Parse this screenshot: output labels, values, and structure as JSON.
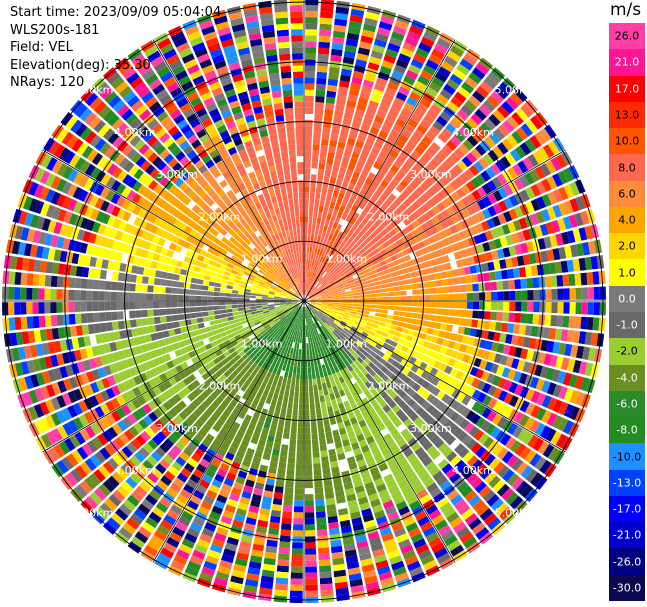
{
  "header": {
    "start_time": "Start time: 2023/09/09 05:04:04",
    "site": "WLS200s-181",
    "field": "Field: VEL",
    "elevation": "Elevation(deg): 35.30",
    "nrays": "NRays: 120"
  },
  "colorbar": {
    "unit": "m/s",
    "labels": [
      "26.0",
      "21.0",
      "17.0",
      "13.0",
      "10.0",
      "8.0",
      "6.0",
      "4.0",
      "2.0",
      "1.0",
      "0.0",
      "-1.0",
      "-2.0",
      "-4.0",
      "-6.0",
      "-8.0",
      "-10.0",
      "-13.0",
      "-17.0",
      "-21.0",
      "-26.0",
      "-30.0"
    ],
    "colors": [
      "#ff3fa5",
      "#ff1493",
      "#ff0000",
      "#ff2a00",
      "#ff5500",
      "#ff6a4f",
      "#ff8c3a",
      "#ffa500",
      "#ffd700",
      "#ffff00",
      "#7a7a7a",
      "#696969",
      "#9acd32",
      "#6b8e23",
      "#2a8b2a",
      "#228b22",
      "#1e90ff",
      "#0040ff",
      "#0000ff",
      "#0000cd",
      "#000080",
      "#0a0a50"
    ]
  },
  "chart_data": {
    "type": "ppi",
    "field": "VEL",
    "n_rays": 120,
    "elevation_deg": 35.3,
    "range_rings_km": [
      1.0,
      2.0,
      3.0,
      4.0,
      5.0
    ],
    "ring_labels": [
      "1.00km",
      "2.00km",
      "3.00km",
      "4.00km",
      "5.00km"
    ],
    "max_range_km": 5.05,
    "value_range": [
      -30.0,
      26.0
    ],
    "pattern_description_values": {
      "north_sector_velocity": 8.0,
      "east_sector_velocity": 2.0,
      "south_sector_velocity": -6.0,
      "southwest_core_velocity": -8.0,
      "west_sector_velocity": -2.0,
      "noise_start_range_km": 3.1
    }
  }
}
